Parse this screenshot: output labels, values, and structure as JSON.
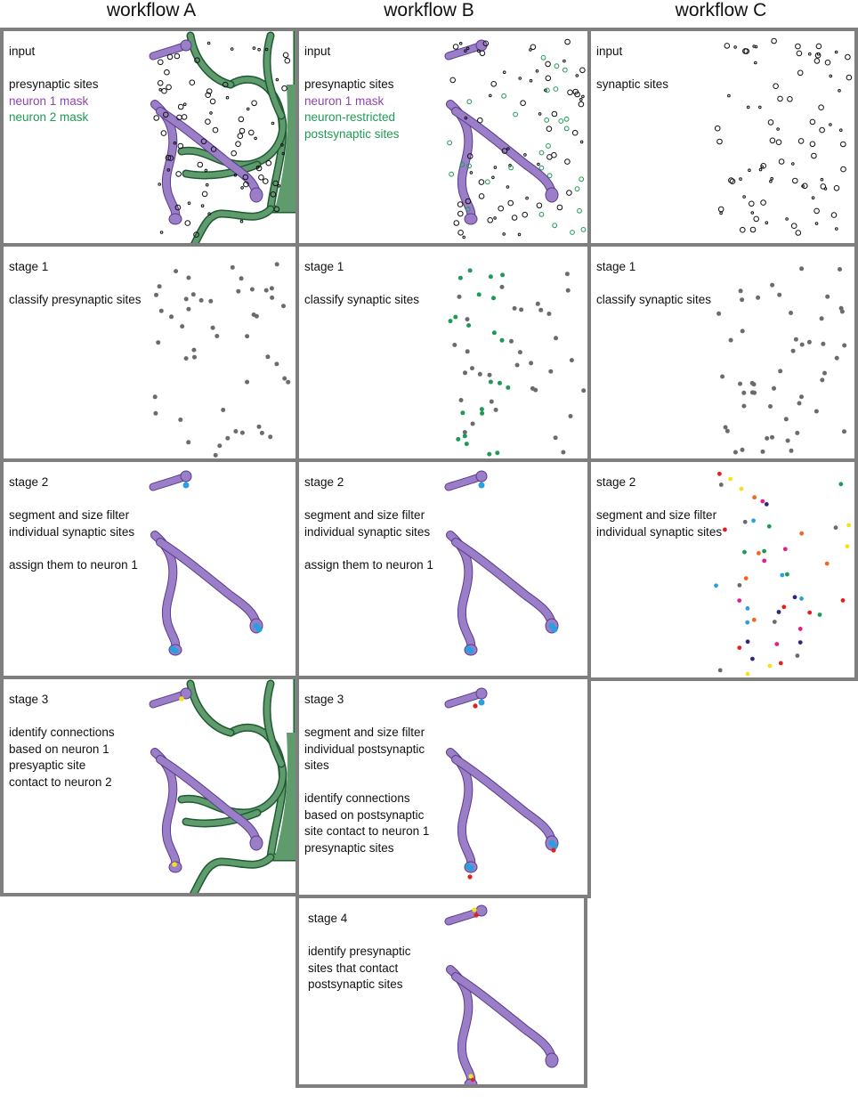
{
  "titles": {
    "a": "workflow A",
    "b": "workflow B",
    "c": "workflow C"
  },
  "colors": {
    "border": "#7f7f7f",
    "neuron1": "#9b7ec8",
    "neuron1_outline": "#5a3b8c",
    "neuron2": "#5f9b6c",
    "neuron2_outline": "#1e5a32",
    "site_gray": "#6b6b6b",
    "site_green": "#1f9a55",
    "site_blue": "#2a9fe0",
    "connection_yellow": "#f4e21a",
    "postsynaptic_red": "#e32020",
    "label_purple": "#8e44ad",
    "label_green": "#1f9a55"
  },
  "panels": {
    "a_input": {
      "stage": "input",
      "lines": [
        "presynaptic sites"
      ],
      "purple": "neuron 1 mask",
      "green": "neuron 2 mask"
    },
    "a_s1": {
      "stage": "stage 1",
      "lines": [
        "classify presynaptic sites"
      ]
    },
    "a_s2": {
      "stage": "stage 2",
      "lines": [
        "segment and size filter",
        "individual synaptic sites"
      ],
      "lines2": [
        "assign them to neuron 1"
      ]
    },
    "a_s3": {
      "stage": "stage 3",
      "lines": [
        "identify connections",
        "based on neuron 1",
        "presyaptic site",
        "contact to neuron 2"
      ]
    },
    "b_input": {
      "stage": "input",
      "lines": [
        "presynaptic sites"
      ],
      "purple": "neuron 1 mask",
      "green1": "neuron-restricted",
      "green2": "postsynaptic sites"
    },
    "b_s1": {
      "stage": "stage 1",
      "lines": [
        "classify synaptic sites"
      ]
    },
    "b_s2": {
      "stage": "stage 2",
      "lines": [
        "segment and size filter",
        "individual synaptic sites"
      ],
      "lines2": [
        "assign them to neuron 1"
      ]
    },
    "b_s3": {
      "stage": "stage 3",
      "lines": [
        "segment and size filter",
        "individual postsynaptic",
        "sites"
      ],
      "lines2": [
        "identify connections",
        "based on postsynaptic",
        "site contact to neuron 1",
        "presynaptic sites"
      ]
    },
    "b_s4": {
      "stage": "stage 4",
      "lines": [
        "identify presynaptic",
        "sites that  contact",
        "postsynaptic sites"
      ]
    },
    "c_input": {
      "stage": "input",
      "lines": [
        "synaptic sites"
      ]
    },
    "c_s1": {
      "stage": "stage 1",
      "lines": [
        "classify synaptic sites"
      ]
    },
    "c_s2": {
      "stage": "stage 2",
      "lines": [
        "segment and size filter",
        "individual synaptic sites"
      ]
    }
  }
}
